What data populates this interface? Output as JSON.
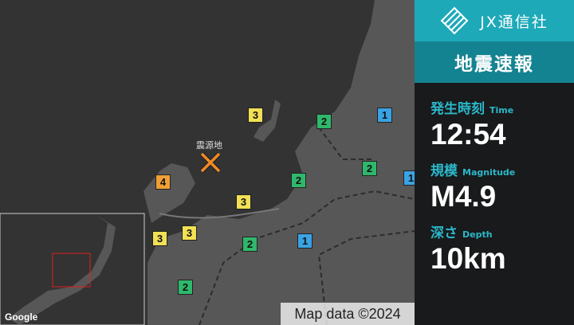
{
  "header": {
    "logo": "JX通信社",
    "title": "地震速報"
  },
  "info": [
    {
      "label": "発生時刻",
      "sublabel": "Time",
      "value": "12:54"
    },
    {
      "label": "規模",
      "sublabel": "Magnitude",
      "value": "M4.9"
    },
    {
      "label": "深さ",
      "sublabel": "Depth",
      "value": "10km"
    }
  ],
  "map": {
    "epicenter_label": "震源地",
    "attribution": "Map data ©2024",
    "provider": "Google",
    "markers": [
      "3",
      "2",
      "1",
      "2",
      "1",
      "2",
      "4",
      "3",
      "3",
      "3",
      "2",
      "1",
      "2"
    ]
  }
}
